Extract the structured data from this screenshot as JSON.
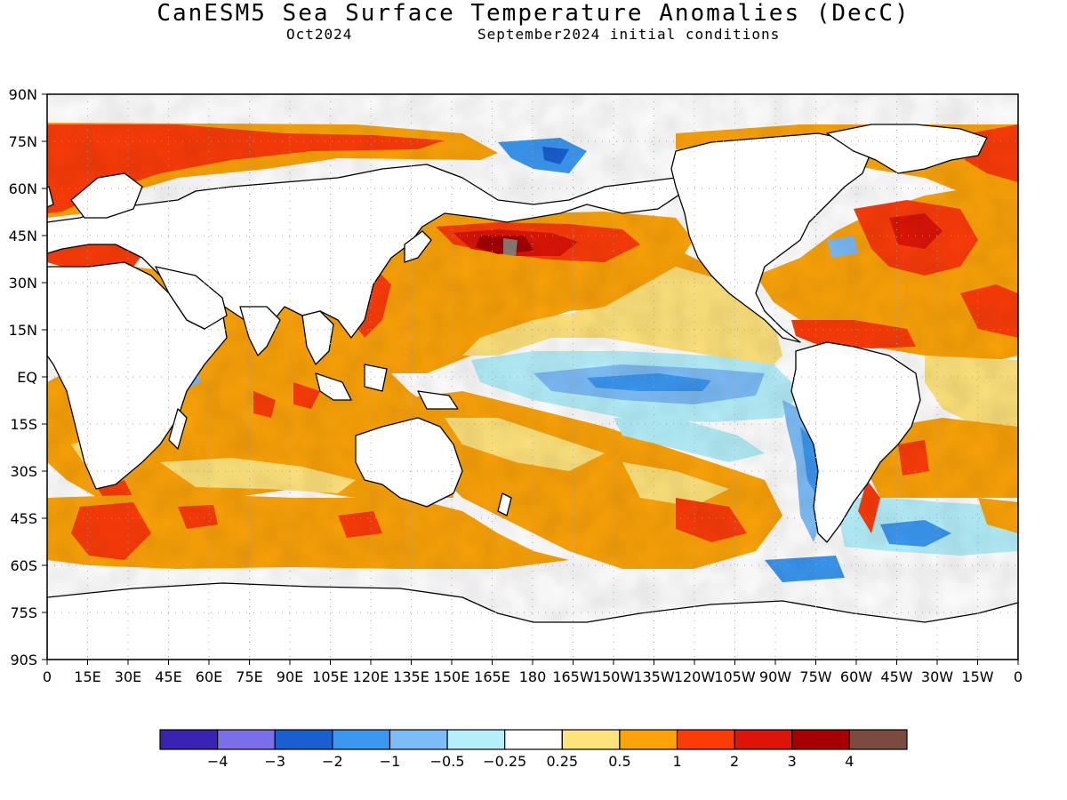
{
  "header": {
    "title": "CanESM5 Sea Surface Temperature Anomalies (DecC)",
    "valid_month": "Oct2024",
    "initial_conditions": "September2024 initial conditions"
  },
  "map_axes": {
    "lat_labels": [
      "90N",
      "75N",
      "60N",
      "45N",
      "30N",
      "15N",
      "EQ",
      "15S",
      "30S",
      "45S",
      "60S",
      "75S",
      "90S"
    ],
    "lon_labels": [
      "0",
      "15E",
      "30E",
      "45E",
      "60E",
      "75E",
      "90E",
      "105E",
      "120E",
      "135E",
      "150E",
      "165E",
      "180",
      "165W",
      "150W",
      "135W",
      "120W",
      "105W",
      "90W",
      "75W",
      "60W",
      "45W",
      "30W",
      "15W",
      "0"
    ]
  },
  "colorbar": {
    "colors": [
      "#3a22b3",
      "#7b6fe8",
      "#1a5fd0",
      "#3b97f0",
      "#7dbdf7",
      "#b4effa",
      "#ffffff",
      "#fee27c",
      "#fba309",
      "#fb3c09",
      "#dc1508",
      "#a70000",
      "#7a4b3e"
    ],
    "labels": [
      "-4",
      "-3",
      "-2",
      "-1",
      "-0.5",
      "-0.25",
      "0.25",
      "0.5",
      "1",
      "2",
      "3",
      "4"
    ]
  },
  "colors": {
    "land": "#ffffff",
    "coast": "#000000",
    "grid": "#a0a0a0",
    "missing": "#8c7d77"
  }
}
